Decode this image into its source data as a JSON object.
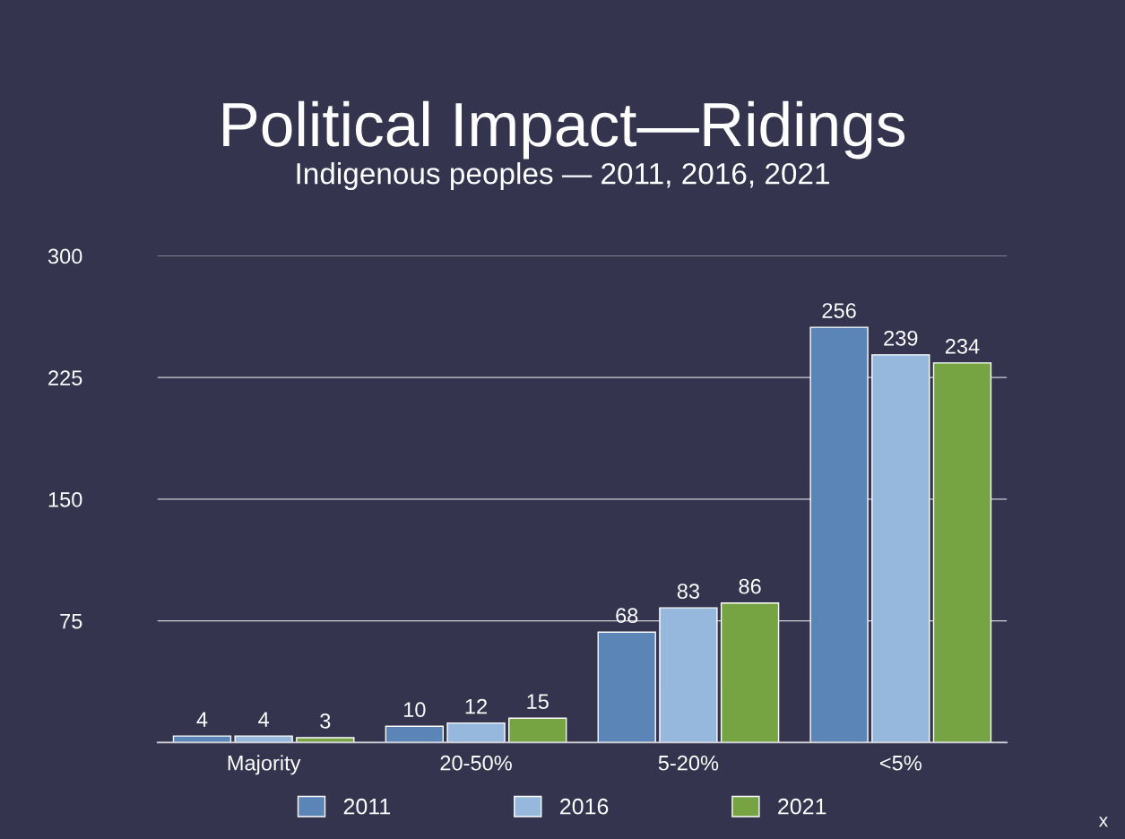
{
  "chart_data": {
    "type": "bar",
    "title": "Political Impact—Ridings",
    "subtitle": "Indigenous peoples — 2011, 2016, 2021",
    "categories": [
      "Majority",
      "20-50%",
      "5-20%",
      "<5%"
    ],
    "series": [
      {
        "name": "2011",
        "color": "#5b84b7",
        "values": [
          4,
          10,
          68,
          256
        ]
      },
      {
        "name": "2016",
        "color": "#95b8dc",
        "values": [
          4,
          12,
          83,
          239
        ]
      },
      {
        "name": "2021",
        "color": "#77a443",
        "values": [
          3,
          15,
          86,
          234
        ]
      }
    ],
    "ylim": [
      0,
      300
    ],
    "yticks": [
      {
        "value": 0,
        "label": null
      },
      75,
      150,
      225,
      300
    ],
    "grid": "y",
    "legend": "bottom",
    "data_labels": true,
    "annotations": [
      "x"
    ]
  }
}
